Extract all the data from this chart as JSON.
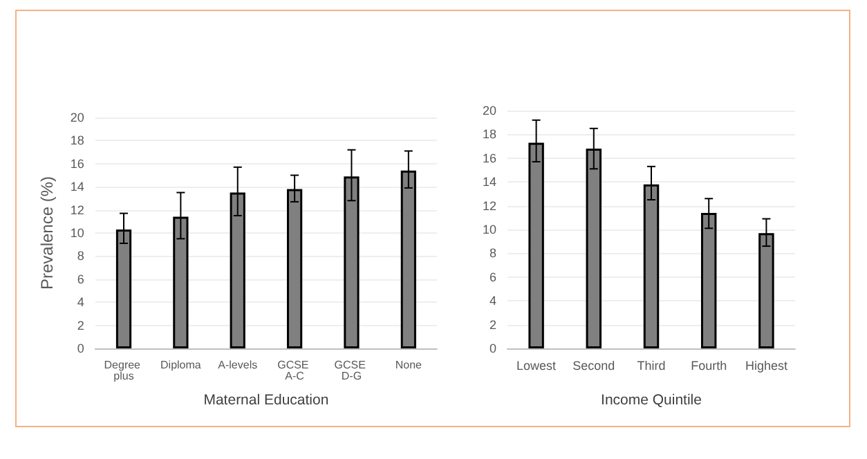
{
  "chart_data": [
    {
      "type": "bar",
      "ylabel": "Prevalence (%)",
      "xlabel": "Maternal Education",
      "categories": [
        "Degree plus",
        "Diploma",
        "A-levels",
        "GCSE A-C",
        "GCSE D-G",
        "None"
      ],
      "values": [
        10.3,
        11.4,
        13.5,
        13.8,
        14.9,
        15.4
      ],
      "errors": [
        [
          9.1,
          11.7
        ],
        [
          9.5,
          13.5
        ],
        [
          11.5,
          15.7
        ],
        [
          12.7,
          15.0
        ],
        [
          12.8,
          17.2
        ],
        [
          13.9,
          17.1
        ]
      ],
      "color": "#808080",
      "ylim": [
        0,
        20
      ],
      "yticks": [
        0,
        2,
        4,
        6,
        8,
        10,
        12,
        14,
        16,
        18,
        20
      ],
      "grid": "y"
    },
    {
      "type": "bar",
      "xlabel": "Income Quintile",
      "categories": [
        "Lowest",
        "Second",
        "Third",
        "Fourth",
        "Highest"
      ],
      "values": [
        17.3,
        16.8,
        13.8,
        11.4,
        9.7
      ],
      "errors": [
        [
          15.7,
          19.2
        ],
        [
          15.1,
          18.5
        ],
        [
          12.5,
          15.3
        ],
        [
          10.1,
          12.6
        ],
        [
          8.6,
          10.9
        ]
      ],
      "color": "#808080",
      "ylim": [
        0,
        20
      ],
      "yticks": [
        0,
        2,
        4,
        6,
        8,
        10,
        12,
        14,
        16,
        18,
        20
      ],
      "grid": "y"
    }
  ]
}
